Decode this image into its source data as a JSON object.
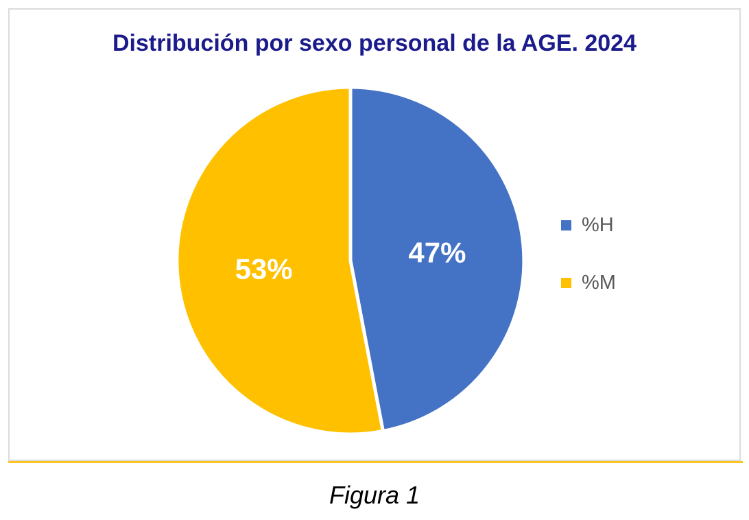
{
  "figure": {
    "caption": "Figura 1"
  },
  "colors": {
    "title_text": "#1B1B8C",
    "legend_text": "#595959",
    "frame_border": "#DCDCDC",
    "accent_line": "#FDC428",
    "caption_text": "#000000"
  },
  "chart_data": {
    "type": "pie",
    "title": "Distribución por sexo personal de la AGE. 2024",
    "labels": [
      "%H",
      "%M"
    ],
    "values": [
      47,
      53
    ],
    "data_labels": [
      "47%",
      "53%"
    ],
    "colors": [
      "#4472C4",
      "#FFC000"
    ],
    "data_label_color": "#FFFFFF",
    "legend_position": "right",
    "start_angle_deg": 0,
    "direction": "clockwise",
    "slice_separator_color": "#FFFFFF"
  }
}
